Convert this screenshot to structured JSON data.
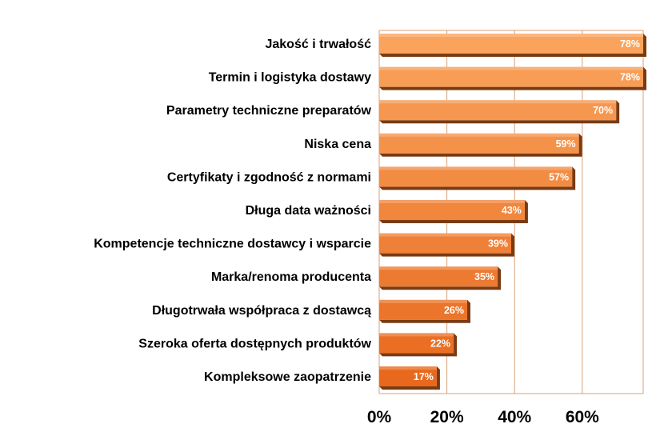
{
  "chart_data": {
    "type": "bar",
    "orientation": "horizontal",
    "categories": [
      "Jakość i trwałość",
      "Termin i logistyka dostawy",
      "Parametry techniczne preparatów",
      "Niska cena",
      "Certyfikaty i zgodność z normami",
      "Długa data ważności",
      "Kompetencje techniczne dostawcy i wsparcie",
      "Marka/renoma producenta",
      "Długotrwała współpraca z dostawcą",
      "Szeroka oferta dostępnych produktów",
      "Kompleksowe zaopatrzenie"
    ],
    "values": [
      78,
      78,
      70,
      59,
      57,
      43,
      39,
      35,
      26,
      22,
      17
    ],
    "value_labels": [
      "78%",
      "78%",
      "70%",
      "59%",
      "57%",
      "43%",
      "39%",
      "35%",
      "26%",
      "22%",
      "17%"
    ],
    "x_ticks": [
      0,
      20,
      40,
      60
    ],
    "x_tick_labels": [
      "0%",
      "20%",
      "40%",
      "60%"
    ],
    "xlim": [
      0,
      78
    ],
    "title": "",
    "xlabel": "",
    "ylabel": "",
    "grid": "vertical",
    "legend": "none",
    "colors": {
      "bar_light": "#F9A35C",
      "bar_dark": "#E8691E",
      "bar_shadow": "#7A3A12",
      "grid": "#D9A077",
      "text": "#000000",
      "value_text": "#FFFFFF"
    }
  }
}
